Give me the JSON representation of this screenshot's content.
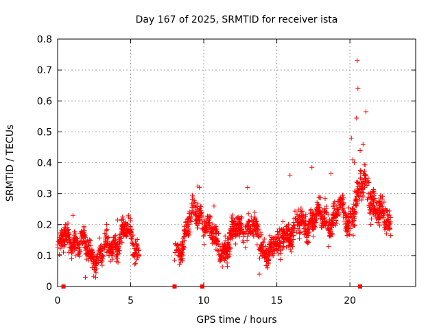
{
  "chart_data": {
    "type": "scatter",
    "title": "Day 167 of 2025, SRMTID for receiver ista",
    "xlabel": "GPS time / hours",
    "ylabel": "SRMTID / TECUs",
    "xlim": [
      0,
      24.5
    ],
    "ylim": [
      0,
      0.8
    ],
    "x_ticks": [
      0,
      5,
      10,
      15,
      20
    ],
    "x_tick_labels": [
      "0",
      "5",
      "10",
      "15",
      "20"
    ],
    "y_ticks": [
      0,
      0.1,
      0.2,
      0.3,
      0.4,
      0.5,
      0.6,
      0.7,
      0.8
    ],
    "y_tick_labels": [
      "0",
      "0.1",
      "0.2",
      "0.3",
      "0.4",
      "0.5",
      "0.6",
      "0.7",
      "0.8"
    ],
    "grid": true,
    "marker": "plus",
    "series_color": "#ff0000",
    "segments": [
      {
        "start": 0.0,
        "end": 5.6,
        "baseline": 0.1,
        "peaks": [
          [
            1.0,
            0.16
          ],
          [
            4.6,
            0.17
          ]
        ],
        "spread": 0.045
      },
      {
        "start": 8.0,
        "end": 15.3,
        "baseline": 0.12,
        "peaks": [
          [
            9.6,
            0.24
          ],
          [
            12.8,
            0.2
          ]
        ],
        "spread": 0.045
      },
      {
        "start": 15.3,
        "end": 20.0,
        "baseline": 0.18,
        "peaks": [
          [
            17.5,
            0.22
          ],
          [
            19.3,
            0.24
          ]
        ],
        "spread": 0.05
      },
      {
        "start": 20.0,
        "end": 22.8,
        "baseline": 0.2,
        "peaks": [
          [
            21.0,
            0.32
          ]
        ],
        "spread": 0.06
      }
    ],
    "highlighted_points": [
      {
        "x": 20.5,
        "y": 0.73
      },
      {
        "x": 20.55,
        "y": 0.64
      },
      {
        "x": 20.45,
        "y": 0.545
      },
      {
        "x": 21.1,
        "y": 0.565
      },
      {
        "x": 20.1,
        "y": 0.48
      },
      {
        "x": 20.9,
        "y": 0.46
      },
      {
        "x": 20.7,
        "y": 0.44
      },
      {
        "x": 20.2,
        "y": 0.41
      },
      {
        "x": 20.3,
        "y": 0.4
      },
      {
        "x": 15.9,
        "y": 0.36
      },
      {
        "x": 17.4,
        "y": 0.385
      },
      {
        "x": 18.7,
        "y": 0.365
      },
      {
        "x": 9.6,
        "y": 0.325
      },
      {
        "x": 9.7,
        "y": 0.32
      },
      {
        "x": 13.0,
        "y": 0.32
      },
      {
        "x": 10.7,
        "y": 0.26
      },
      {
        "x": 1.05,
        "y": 0.23
      },
      {
        "x": 4.1,
        "y": 0.215
      },
      {
        "x": 13.8,
        "y": 0.04
      },
      {
        "x": 1.9,
        "y": 0.03
      }
    ],
    "outage_markers": [
      0.4,
      8.0,
      9.9,
      20.7
    ],
    "seed": 167
  }
}
